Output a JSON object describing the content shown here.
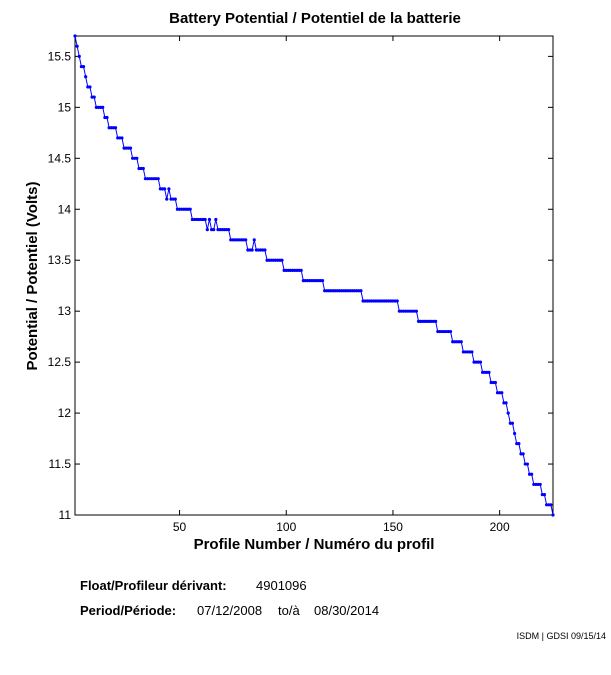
{
  "chart_data": {
    "type": "line",
    "title": "Battery Potential / Potentiel de la batterie",
    "xlabel": "Profile Number / Numéro du profil",
    "ylabel": "Potential / Potentiel (Volts)",
    "annotations": {
      "float_label": "Float/Profileur dérivant:",
      "float_id": "4901096",
      "period_label": "Period/Période:",
      "start": "07/12/2008",
      "to": "to/à",
      "end": "08/30/2014",
      "credit": "ISDM | GDSI 09/15/14"
    },
    "xlim": [
      1,
      225
    ],
    "xticks": [
      50,
      100,
      150,
      200
    ],
    "ylim": [
      11,
      15.7
    ],
    "yticks": [
      11,
      11.5,
      12,
      12.5,
      13,
      13.5,
      14,
      14.5,
      15,
      15.5
    ],
    "x": [
      1,
      2,
      3,
      4,
      5,
      6,
      7,
      8,
      9,
      10,
      11,
      12,
      13,
      14,
      15,
      16,
      17,
      18,
      19,
      20,
      21,
      22,
      23,
      24,
      25,
      26,
      27,
      28,
      29,
      30,
      31,
      32,
      33,
      34,
      35,
      36,
      37,
      38,
      39,
      40,
      41,
      42,
      43,
      44,
      45,
      46,
      47,
      48,
      49,
      50,
      51,
      52,
      53,
      54,
      55,
      56,
      57,
      58,
      59,
      60,
      61,
      62,
      63,
      64,
      65,
      66,
      67,
      68,
      69,
      70,
      71,
      72,
      73,
      74,
      75,
      76,
      77,
      78,
      79,
      80,
      81,
      82,
      83,
      84,
      85,
      86,
      87,
      88,
      89,
      90,
      91,
      92,
      93,
      94,
      95,
      96,
      97,
      98,
      99,
      100,
      101,
      102,
      103,
      104,
      105,
      106,
      107,
      108,
      109,
      110,
      111,
      112,
      113,
      114,
      115,
      116,
      117,
      118,
      119,
      120,
      121,
      122,
      123,
      124,
      125,
      126,
      127,
      128,
      129,
      130,
      131,
      132,
      133,
      134,
      135,
      136,
      137,
      138,
      139,
      140,
      141,
      142,
      143,
      144,
      145,
      146,
      147,
      148,
      149,
      150,
      151,
      152,
      153,
      154,
      155,
      156,
      157,
      158,
      159,
      160,
      161,
      162,
      163,
      164,
      165,
      166,
      167,
      168,
      169,
      170,
      171,
      172,
      173,
      174,
      175,
      176,
      177,
      178,
      179,
      180,
      181,
      182,
      183,
      184,
      185,
      186,
      187,
      188,
      189,
      190,
      191,
      192,
      193,
      194,
      195,
      196,
      197,
      198,
      199,
      200,
      201,
      202,
      203,
      204,
      205,
      206,
      207,
      208,
      209,
      210,
      211,
      212,
      213,
      214,
      215,
      216,
      217,
      218,
      219,
      220,
      221,
      222,
      223,
      224,
      225
    ],
    "series": [
      {
        "color": "#0000ff",
        "values": [
          15.7,
          15.6,
          15.5,
          15.4,
          15.4,
          15.3,
          15.2,
          15.2,
          15.1,
          15.1,
          15.0,
          15.0,
          15.0,
          15.0,
          14.9,
          14.9,
          14.8,
          14.8,
          14.8,
          14.8,
          14.7,
          14.7,
          14.7,
          14.6,
          14.6,
          14.6,
          14.6,
          14.5,
          14.5,
          14.5,
          14.4,
          14.4,
          14.4,
          14.3,
          14.3,
          14.3,
          14.3,
          14.3,
          14.3,
          14.3,
          14.2,
          14.2,
          14.2,
          14.1,
          14.2,
          14.1,
          14.1,
          14.1,
          14.0,
          14.0,
          14.0,
          14.0,
          14.0,
          14.0,
          14.0,
          13.9,
          13.9,
          13.9,
          13.9,
          13.9,
          13.9,
          13.9,
          13.8,
          13.9,
          13.8,
          13.8,
          13.9,
          13.8,
          13.8,
          13.8,
          13.8,
          13.8,
          13.8,
          13.7,
          13.7,
          13.7,
          13.7,
          13.7,
          13.7,
          13.7,
          13.7,
          13.6,
          13.6,
          13.6,
          13.7,
          13.6,
          13.6,
          13.6,
          13.6,
          13.6,
          13.5,
          13.5,
          13.5,
          13.5,
          13.5,
          13.5,
          13.5,
          13.5,
          13.4,
          13.4,
          13.4,
          13.4,
          13.4,
          13.4,
          13.4,
          13.4,
          13.4,
          13.3,
          13.3,
          13.3,
          13.3,
          13.3,
          13.3,
          13.3,
          13.3,
          13.3,
          13.3,
          13.2,
          13.2,
          13.2,
          13.2,
          13.2,
          13.2,
          13.2,
          13.2,
          13.2,
          13.2,
          13.2,
          13.2,
          13.2,
          13.2,
          13.2,
          13.2,
          13.2,
          13.2,
          13.1,
          13.1,
          13.1,
          13.1,
          13.1,
          13.1,
          13.1,
          13.1,
          13.1,
          13.1,
          13.1,
          13.1,
          13.1,
          13.1,
          13.1,
          13.1,
          13.1,
          13.0,
          13.0,
          13.0,
          13.0,
          13.0,
          13.0,
          13.0,
          13.0,
          13.0,
          12.9,
          12.9,
          12.9,
          12.9,
          12.9,
          12.9,
          12.9,
          12.9,
          12.9,
          12.8,
          12.8,
          12.8,
          12.8,
          12.8,
          12.8,
          12.8,
          12.7,
          12.7,
          12.7,
          12.7,
          12.7,
          12.6,
          12.6,
          12.6,
          12.6,
          12.6,
          12.5,
          12.5,
          12.5,
          12.5,
          12.4,
          12.4,
          12.4,
          12.4,
          12.3,
          12.3,
          12.3,
          12.2,
          12.2,
          12.2,
          12.1,
          12.1,
          12.0,
          11.9,
          11.9,
          11.8,
          11.7,
          11.7,
          11.6,
          11.6,
          11.5,
          11.5,
          11.4,
          11.4,
          11.3,
          11.3,
          11.3,
          11.3,
          11.2,
          11.2,
          11.1,
          11.1,
          11.1,
          11.0
        ]
      }
    ]
  }
}
